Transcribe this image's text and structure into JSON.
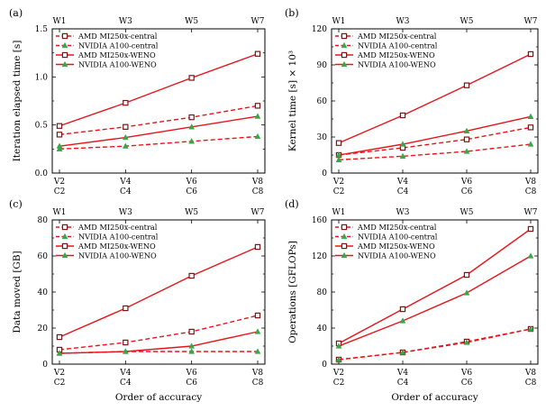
{
  "xlabel": "Order of accuracy",
  "xcategories_v": [
    "V2",
    "V4",
    "V6",
    "V8"
  ],
  "xcategories_c": [
    "C2",
    "C4",
    "C6",
    "C8"
  ],
  "top_axis_labels": [
    "W1",
    "W3",
    "W5",
    "W7"
  ],
  "colors": {
    "series": "#e8141b",
    "marker_square": "#7a1616",
    "marker_triangle": "#3aa64a"
  },
  "chart_data": [
    {
      "panel": "(a)",
      "type": "line",
      "ylabel": "Iteration elapsed time [s]",
      "ylim": [
        0,
        1.5
      ],
      "yticks": [
        "0.0",
        "0.5",
        "1.0",
        "1.5"
      ],
      "yticks_minor": [
        0.25,
        0.75,
        1.25
      ],
      "legend_position": "upper-left",
      "categories": [
        "V2/C2",
        "V4/C4",
        "V6/C6",
        "V8/C8"
      ],
      "series": [
        {
          "name": "AMD MI250x-central",
          "dashed": true,
          "marker": "square",
          "values": [
            0.4,
            0.48,
            0.58,
            0.7
          ]
        },
        {
          "name": "NVIDIA A100-central",
          "dashed": true,
          "marker": "triangle",
          "values": [
            0.25,
            0.28,
            0.33,
            0.38
          ]
        },
        {
          "name": "AMD MI250x-WENO",
          "dashed": false,
          "marker": "square",
          "values": [
            0.49,
            0.73,
            0.99,
            1.24
          ]
        },
        {
          "name": "NVIDIA A100-WENO",
          "dashed": false,
          "marker": "triangle",
          "values": [
            0.28,
            0.37,
            0.48,
            0.59
          ]
        }
      ]
    },
    {
      "panel": "(b)",
      "type": "line",
      "ylabel": "Kernel time [s] × 10³",
      "ylim": [
        0,
        120
      ],
      "yticks": [
        "0",
        "30",
        "60",
        "90",
        "120"
      ],
      "yticks_minor": [
        15,
        45,
        75,
        105
      ],
      "legend_position": "upper-left",
      "categories": [
        "V2/C2",
        "V4/C4",
        "V6/C6",
        "V8/C8"
      ],
      "series": [
        {
          "name": "AMD MI250x-central",
          "dashed": true,
          "marker": "square",
          "values": [
            15,
            21,
            28,
            38
          ]
        },
        {
          "name": "NVIDIA A100-central",
          "dashed": true,
          "marker": "triangle",
          "values": [
            11,
            14,
            18,
            24
          ]
        },
        {
          "name": "AMD MI250x-WENO",
          "dashed": false,
          "marker": "square",
          "values": [
            25,
            48,
            73,
            99
          ]
        },
        {
          "name": "NVIDIA A100-WENO",
          "dashed": false,
          "marker": "triangle",
          "values": [
            15,
            24,
            35,
            47
          ]
        }
      ]
    },
    {
      "panel": "(c)",
      "type": "line",
      "ylabel": "Data moved [GB]",
      "ylim": [
        0,
        80
      ],
      "yticks": [
        "0",
        "20",
        "40",
        "60",
        "80"
      ],
      "yticks_minor": [
        10,
        30,
        50,
        70
      ],
      "legend_position": "upper-left",
      "categories": [
        "V2/C2",
        "V4/C4",
        "V6/C6",
        "V8/C8"
      ],
      "series": [
        {
          "name": "AMD MI250x-central",
          "dashed": true,
          "marker": "square",
          "values": [
            8,
            12,
            18,
            27
          ]
        },
        {
          "name": "NVIDIA A100-central",
          "dashed": true,
          "marker": "triangle",
          "values": [
            6,
            7,
            7,
            7
          ]
        },
        {
          "name": "AMD MI250x-WENO",
          "dashed": false,
          "marker": "square",
          "values": [
            15,
            31,
            49,
            65
          ]
        },
        {
          "name": "NVIDIA A100-WENO",
          "dashed": false,
          "marker": "triangle",
          "values": [
            6,
            7,
            10,
            18
          ]
        }
      ]
    },
    {
      "panel": "(d)",
      "type": "line",
      "ylabel": "Operations [GFLOPs]",
      "ylim": [
        0,
        160
      ],
      "yticks": [
        "0",
        "40",
        "80",
        "120",
        "160"
      ],
      "yticks_minor": [
        20,
        60,
        100,
        140
      ],
      "legend_position": "upper-left",
      "categories": [
        "V2/C2",
        "V4/C4",
        "V6/C6",
        "V8/C8"
      ],
      "series": [
        {
          "name": "AMD MI250x-central",
          "dashed": true,
          "marker": "square",
          "values": [
            5,
            13,
            25,
            39
          ]
        },
        {
          "name": "NVIDIA A100-central",
          "dashed": true,
          "marker": "triangle",
          "values": [
            5,
            13,
            24,
            39
          ]
        },
        {
          "name": "AMD MI250x-WENO",
          "dashed": false,
          "marker": "square",
          "values": [
            23,
            61,
            99,
            150
          ]
        },
        {
          "name": "NVIDIA A100-WENO",
          "dashed": false,
          "marker": "triangle",
          "values": [
            20,
            48,
            79,
            120
          ]
        }
      ]
    }
  ]
}
